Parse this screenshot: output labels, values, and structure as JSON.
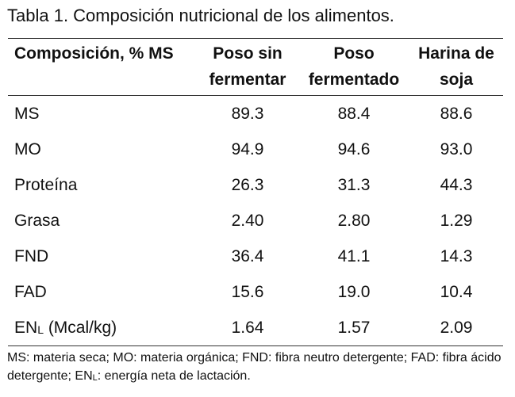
{
  "caption": "Tabla 1. Composición nutricional de los alimentos.",
  "table": {
    "headers": [
      "Composición, % MS",
      "Poso sin fermentar",
      "Poso fermentado",
      "Harina de soja"
    ],
    "rows": [
      {
        "label": "MS",
        "values": [
          "89.3",
          "88.4",
          "88.6"
        ]
      },
      {
        "label": "MO",
        "values": [
          "94.9",
          "94.6",
          "93.0"
        ]
      },
      {
        "label": "Proteína",
        "values": [
          "26.3",
          "31.3",
          "44.3"
        ]
      },
      {
        "label": "Grasa",
        "values": [
          "2.40",
          "2.80",
          "1.29"
        ]
      },
      {
        "label": "FND",
        "values": [
          "36.4",
          "41.1",
          "14.3"
        ]
      },
      {
        "label": "FAD",
        "values": [
          "15.6",
          "19.0",
          "10.4"
        ]
      },
      {
        "label_base": "EN",
        "label_sub": "L",
        "label_rest": " (Mcal/kg)",
        "values": [
          "1.64",
          "1.57",
          "2.09"
        ]
      }
    ]
  },
  "footnote": {
    "part1": "MS: materia seca; MO: materia orgánica; FND: fibra neutro detergente; FAD: fibra ácido detergente; EN",
    "sub": "L",
    "part2": ": energía neta de lactación."
  }
}
